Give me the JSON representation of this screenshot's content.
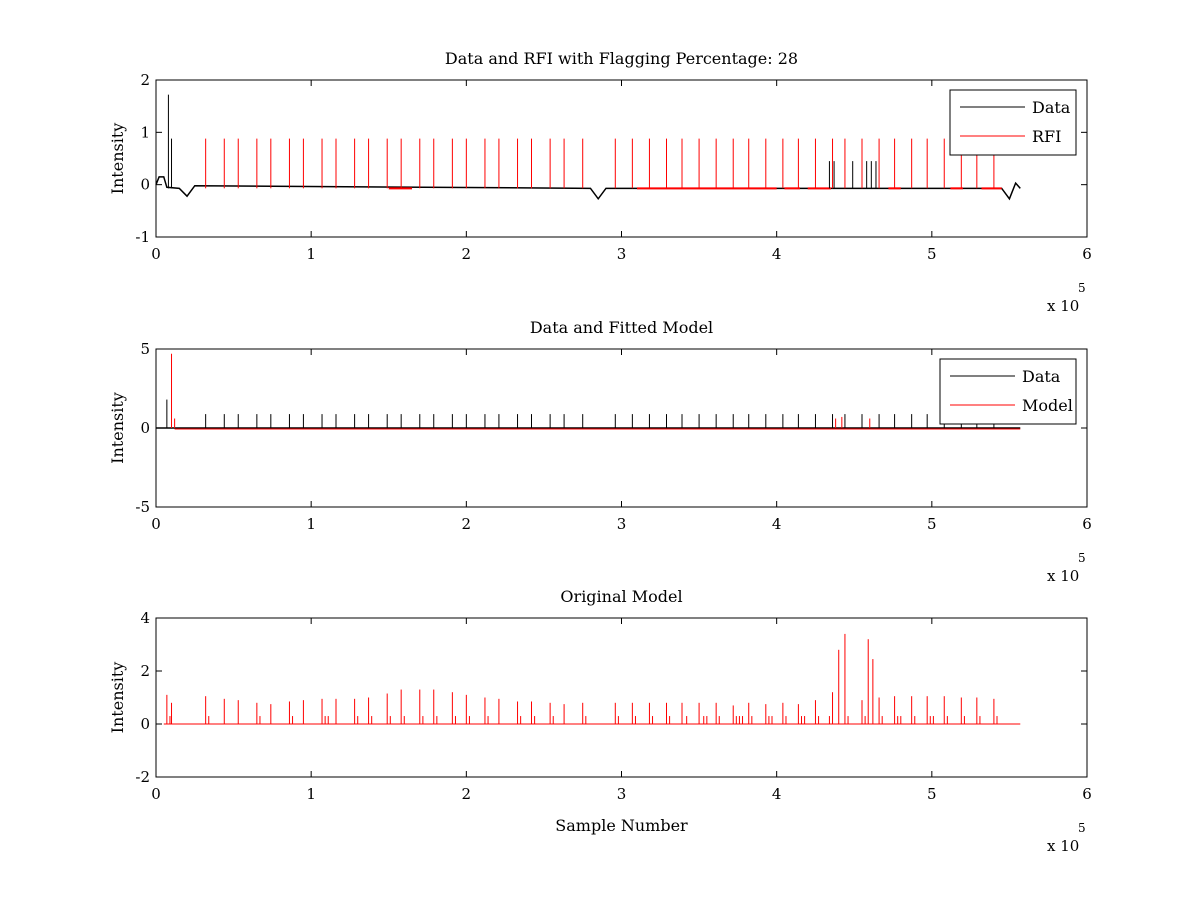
{
  "colors": {
    "data": "#000000",
    "rfi": "#ff0000",
    "model": "#ff0000",
    "background": "#ffffff"
  },
  "chart_data": [
    {
      "id": "panel1",
      "type": "line",
      "title": "Data and RFI with Flagging Percentage: 28",
      "xlabel": "",
      "ylabel": "Intensity",
      "xlim": [
        0,
        6
      ],
      "ylim": [
        -1,
        2
      ],
      "xticks": [
        "0",
        "1",
        "2",
        "3",
        "4",
        "5",
        "6"
      ],
      "yticks": [
        "-1",
        "0",
        "1",
        "2"
      ],
      "x_multiplier": {
        "base": "x 10",
        "exponent": "5"
      },
      "legend": {
        "position": "top-right",
        "entries": [
          "Data",
          "RFI"
        ]
      },
      "data_spike_x": [
        0.08,
        0.1
      ],
      "data_spike_y": [
        1.72,
        0.88
      ],
      "rfi_spike_x": [
        0.32,
        0.44,
        0.53,
        0.65,
        0.74,
        0.86,
        0.95,
        1.07,
        1.16,
        1.28,
        1.37,
        1.49,
        1.58,
        1.7,
        1.79,
        1.91,
        2.0,
        2.12,
        2.21,
        2.33,
        2.42,
        2.54,
        2.63,
        2.75,
        2.96,
        3.07,
        3.18,
        3.29,
        3.39,
        3.5,
        3.61,
        3.72,
        3.82,
        3.93,
        4.04,
        4.14,
        4.25,
        4.36,
        4.44,
        4.55,
        4.66,
        4.76,
        4.87,
        4.97,
        5.08,
        5.19,
        5.29,
        5.4
      ],
      "rfi_spike_y": 0.88,
      "rfi_span_x": [
        [
          1.5,
          1.65
        ],
        [
          3.1,
          4.0
        ],
        [
          4.05,
          4.15
        ],
        [
          4.2,
          4.35
        ],
        [
          4.72,
          4.8
        ],
        [
          5.12,
          5.2
        ],
        [
          5.32,
          5.45
        ]
      ],
      "baseline_y": -0.07,
      "dips": [
        {
          "x": 0.2,
          "y": -0.22
        },
        {
          "x": 2.85,
          "y": -0.27
        },
        {
          "x": 5.5,
          "y": -0.27
        }
      ],
      "x_end": 5.57
    },
    {
      "id": "panel2",
      "type": "line",
      "title": "Data and Fitted Model",
      "xlabel": "",
      "ylabel": "Intensity",
      "xlim": [
        0,
        6
      ],
      "ylim": [
        -5,
        5
      ],
      "xticks": [
        "0",
        "1",
        "2",
        "3",
        "4",
        "5",
        "6"
      ],
      "yticks": [
        "-5",
        "0",
        "5"
      ],
      "x_multiplier": {
        "base": "x 10",
        "exponent": "5"
      },
      "legend": {
        "position": "top-right",
        "entries": [
          "Data",
          "Model"
        ]
      },
      "data_spike_x": [
        0.07,
        0.32,
        0.44,
        0.53,
        0.65,
        0.74,
        0.86,
        0.95,
        1.07,
        1.16,
        1.28,
        1.37,
        1.49,
        1.58,
        1.7,
        1.79,
        1.91,
        2.0,
        2.12,
        2.21,
        2.33,
        2.42,
        2.54,
        2.63,
        2.75,
        2.96,
        3.07,
        3.18,
        3.29,
        3.39,
        3.5,
        3.61,
        3.72,
        3.82,
        3.93,
        4.04,
        4.14,
        4.25,
        4.36,
        4.44,
        4.55,
        4.66,
        4.76,
        4.87,
        4.97,
        5.08,
        5.19,
        5.29,
        5.4
      ],
      "data_spike_y": [
        1.8,
        0.88
      ],
      "model_spike_x": [
        0.1,
        0.12,
        4.38,
        4.42,
        4.6
      ],
      "model_spike_y": [
        4.7,
        0.6,
        0.6,
        0.7,
        0.6
      ],
      "baseline_y": 0.0,
      "x_end": 5.57
    },
    {
      "id": "panel3",
      "type": "line",
      "title": "Original Model",
      "xlabel": "Sample Number",
      "ylabel": "Intensity",
      "xlim": [
        0,
        6
      ],
      "ylim": [
        -2,
        4
      ],
      "xticks": [
        "0",
        "1",
        "2",
        "3",
        "4",
        "5",
        "6"
      ],
      "yticks": [
        "-2",
        "0",
        "2",
        "4"
      ],
      "x_multiplier": {
        "base": "x 10",
        "exponent": "5"
      },
      "legend": null,
      "spike_x": [
        0.07,
        0.1,
        0.32,
        0.44,
        0.53,
        0.65,
        0.74,
        0.86,
        0.95,
        1.07,
        1.16,
        1.28,
        1.37,
        1.49,
        1.58,
        1.7,
        1.79,
        1.91,
        2.0,
        2.12,
        2.21,
        2.33,
        2.42,
        2.54,
        2.63,
        2.75,
        2.96,
        3.07,
        3.18,
        3.29,
        3.39,
        3.5,
        3.61,
        3.72,
        3.82,
        3.93,
        4.04,
        4.14,
        4.25,
        4.36,
        4.4,
        4.44,
        4.55,
        4.59,
        4.62,
        4.66,
        4.76,
        4.87,
        4.97,
        5.08,
        5.19,
        5.29,
        5.4
      ],
      "spike_y": [
        1.1,
        0.8,
        1.05,
        0.95,
        0.9,
        0.8,
        0.75,
        0.85,
        0.9,
        0.95,
        0.95,
        0.95,
        1.0,
        1.15,
        1.3,
        1.3,
        1.3,
        1.2,
        1.1,
        1.0,
        0.95,
        0.85,
        0.85,
        0.8,
        0.75,
        0.8,
        0.8,
        0.8,
        0.8,
        0.8,
        0.8,
        0.8,
        0.8,
        0.7,
        0.8,
        0.75,
        0.8,
        0.75,
        0.9,
        1.2,
        2.8,
        3.4,
        0.9,
        3.2,
        2.45,
        1.0,
        1.05,
        1.05,
        1.05,
        1.05,
        1.0,
        1.0,
        0.95
      ],
      "small_spike_x": [
        0.09,
        0.34,
        0.67,
        0.88,
        1.09,
        1.11,
        1.3,
        1.39,
        1.51,
        1.6,
        1.72,
        1.81,
        1.93,
        2.02,
        2.14,
        2.35,
        2.44,
        2.56,
        2.77,
        2.98,
        3.09,
        3.2,
        3.31,
        3.42,
        3.53,
        3.55,
        3.63,
        3.74,
        3.76,
        3.78,
        3.84,
        3.95,
        3.97,
        4.06,
        4.16,
        4.18,
        4.27,
        4.34,
        4.46,
        4.57,
        4.68,
        4.78,
        4.8,
        4.89,
        4.99,
        5.01,
        5.1,
        5.21,
        5.31,
        5.42
      ],
      "small_spike_y": 0.3,
      "baseline_y": 0.0,
      "x_end": 5.57
    }
  ]
}
